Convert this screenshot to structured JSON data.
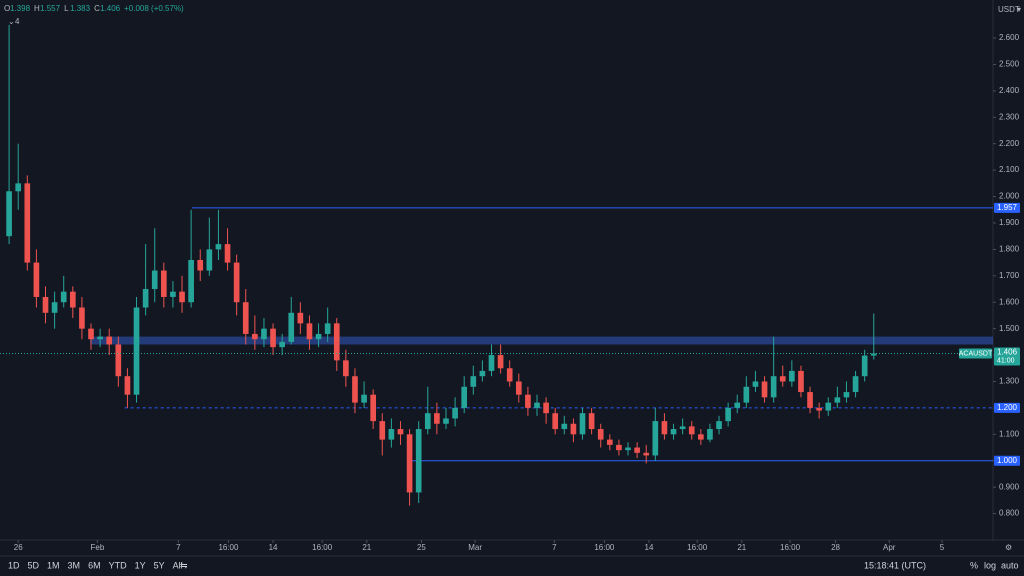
{
  "chart_data": {
    "type": "candlestick",
    "symbol": "ACAUSDT",
    "currency": "USDT",
    "up_color": "#26a69a",
    "down_color": "#ef5350",
    "log_scale": false,
    "grid": false,
    "open": [
      1.85,
      2.02,
      2.05,
      1.75,
      1.62,
      1.56,
      1.6,
      1.64,
      1.58,
      1.5,
      1.46,
      1.47,
      1.44,
      1.32,
      1.25,
      1.58,
      1.65,
      1.72,
      1.62,
      1.64,
      1.6,
      1.76,
      1.72,
      1.8,
      1.82,
      1.75,
      1.6,
      1.48,
      1.46,
      1.5,
      1.43,
      1.45,
      1.56,
      1.52,
      1.46,
      1.48,
      1.52,
      1.38,
      1.32,
      1.22,
      1.25,
      1.15,
      1.08,
      1.12,
      1.1,
      0.88,
      1.12,
      1.18,
      1.14,
      1.16,
      1.2,
      1.28,
      1.32,
      1.34,
      1.4,
      1.35,
      1.3,
      1.25,
      1.2,
      1.22,
      1.18,
      1.12,
      1.14,
      1.1,
      1.18,
      1.12,
      1.08,
      1.06,
      1.04,
      1.05,
      1.03,
      1.02,
      1.15,
      1.1,
      1.12,
      1.13,
      1.1,
      1.08,
      1.12,
      1.15,
      1.2,
      1.22,
      1.28,
      1.3,
      1.24,
      1.32,
      1.3,
      1.34,
      1.26,
      1.2,
      1.19,
      1.22,
      1.24,
      1.26,
      1.32,
      1.398
    ],
    "high": [
      2.65,
      2.2,
      2.08,
      1.8,
      1.66,
      1.64,
      1.7,
      1.66,
      1.62,
      1.52,
      1.5,
      1.5,
      1.47,
      1.35,
      1.62,
      1.82,
      1.88,
      1.75,
      1.68,
      1.7,
      1.95,
      1.8,
      1.92,
      1.95,
      1.88,
      1.78,
      1.65,
      1.55,
      1.54,
      1.52,
      1.48,
      1.62,
      1.6,
      1.55,
      1.52,
      1.58,
      1.54,
      1.42,
      1.35,
      1.3,
      1.27,
      1.18,
      1.16,
      1.15,
      1.12,
      1.15,
      1.28,
      1.22,
      1.2,
      1.24,
      1.32,
      1.36,
      1.38,
      1.44,
      1.44,
      1.38,
      1.33,
      1.28,
      1.25,
      1.24,
      1.2,
      1.17,
      1.16,
      1.2,
      1.2,
      1.14,
      1.1,
      1.08,
      1.07,
      1.07,
      1.06,
      1.2,
      1.18,
      1.14,
      1.16,
      1.15,
      1.12,
      1.14,
      1.17,
      1.22,
      1.25,
      1.32,
      1.34,
      1.32,
      1.47,
      1.36,
      1.38,
      1.36,
      1.28,
      1.22,
      1.24,
      1.28,
      1.3,
      1.34,
      1.42,
      1.557
    ],
    "low": [
      1.82,
      1.95,
      1.72,
      1.58,
      1.52,
      1.5,
      1.58,
      1.54,
      1.46,
      1.42,
      1.43,
      1.4,
      1.28,
      1.2,
      1.22,
      1.55,
      1.6,
      1.58,
      1.58,
      1.56,
      1.58,
      1.68,
      1.7,
      1.76,
      1.72,
      1.55,
      1.44,
      1.42,
      1.43,
      1.4,
      1.4,
      1.44,
      1.48,
      1.42,
      1.43,
      1.45,
      1.34,
      1.28,
      1.18,
      1.2,
      1.12,
      1.02,
      1.05,
      1.06,
      0.83,
      0.84,
      1.1,
      1.1,
      1.12,
      1.13,
      1.18,
      1.25,
      1.3,
      1.32,
      1.33,
      1.28,
      1.22,
      1.17,
      1.17,
      1.14,
      1.1,
      1.1,
      1.07,
      1.08,
      1.1,
      1.05,
      1.04,
      1.02,
      1.02,
      1.01,
      0.99,
      1.0,
      1.08,
      1.08,
      1.1,
      1.08,
      1.06,
      1.07,
      1.1,
      1.13,
      1.18,
      1.2,
      1.26,
      1.22,
      1.22,
      1.28,
      1.28,
      1.24,
      1.18,
      1.16,
      1.17,
      1.2,
      1.22,
      1.24,
      1.3,
      1.383
    ],
    "close": [
      2.02,
      2.05,
      1.75,
      1.62,
      1.56,
      1.6,
      1.64,
      1.58,
      1.5,
      1.46,
      1.47,
      1.44,
      1.32,
      1.25,
      1.58,
      1.65,
      1.72,
      1.62,
      1.64,
      1.6,
      1.76,
      1.72,
      1.8,
      1.82,
      1.75,
      1.6,
      1.48,
      1.46,
      1.5,
      1.43,
      1.45,
      1.56,
      1.52,
      1.46,
      1.48,
      1.52,
      1.38,
      1.32,
      1.22,
      1.25,
      1.15,
      1.08,
      1.12,
      1.1,
      0.88,
      1.12,
      1.18,
      1.14,
      1.16,
      1.2,
      1.28,
      1.32,
      1.34,
      1.4,
      1.35,
      1.3,
      1.25,
      1.2,
      1.22,
      1.18,
      1.12,
      1.14,
      1.1,
      1.18,
      1.12,
      1.08,
      1.06,
      1.04,
      1.05,
      1.03,
      1.02,
      1.15,
      1.1,
      1.12,
      1.13,
      1.1,
      1.08,
      1.12,
      1.15,
      1.2,
      1.22,
      1.28,
      1.3,
      1.24,
      1.32,
      1.3,
      1.34,
      1.26,
      1.2,
      1.19,
      1.22,
      1.24,
      1.26,
      1.32,
      1.398,
      1.406
    ],
    "xlim": [
      -1,
      108.1
    ],
    "xticks": [
      {
        "value": 1.0,
        "label": "26"
      },
      {
        "value": 9.7,
        "label": "Feb"
      },
      {
        "value": 18.6,
        "label": "7"
      },
      {
        "value": 24.1,
        "label": "16:00"
      },
      {
        "value": 29.0,
        "label": "14"
      },
      {
        "value": 34.4,
        "label": "16:00"
      },
      {
        "value": 39.3,
        "label": "21"
      },
      {
        "value": 45.3,
        "label": "25"
      },
      {
        "value": 51.2,
        "label": "Mar"
      },
      {
        "value": 59.9,
        "label": "7"
      },
      {
        "value": 65.4,
        "label": "16:00"
      },
      {
        "value": 70.3,
        "label": "14"
      },
      {
        "value": 75.6,
        "label": "16:00"
      },
      {
        "value": 80.5,
        "label": "21"
      },
      {
        "value": 85.8,
        "label": "16:00"
      },
      {
        "value": 90.8,
        "label": "28"
      },
      {
        "value": 96.7,
        "label": "Apr"
      },
      {
        "value": 102.5,
        "label": "5"
      }
    ],
    "ylim": [
      0.7,
      2.744
    ],
    "yticks": [
      {
        "value": 0.8,
        "label": "0.800"
      },
      {
        "value": 0.9,
        "label": "0.900"
      },
      {
        "value": 1.0,
        "label": "1.000"
      },
      {
        "value": 1.1,
        "label": "1.100"
      },
      {
        "value": 1.2,
        "label": "1.200"
      },
      {
        "value": 1.3,
        "label": "1.300"
      },
      {
        "value": 1.4,
        "label": "1.400"
      },
      {
        "value": 1.5,
        "label": "1.500"
      },
      {
        "value": 1.6,
        "label": "1.600"
      },
      {
        "value": 1.7,
        "label": "1.700"
      },
      {
        "value": 1.8,
        "label": "1.800"
      },
      {
        "value": 1.9,
        "label": "1.900"
      },
      {
        "value": 2.0,
        "label": "2.000"
      },
      {
        "value": 2.1,
        "label": "2.100"
      },
      {
        "value": 2.2,
        "label": "2.200"
      },
      {
        "value": 2.3,
        "label": "2.300"
      },
      {
        "value": 2.4,
        "label": "2.400"
      },
      {
        "value": 2.5,
        "label": "2.500"
      },
      {
        "value": 2.6,
        "label": "2.600"
      }
    ],
    "price_lines": [
      {
        "value": 1.957,
        "label": "1.957",
        "start": 20.1,
        "style": "solid"
      },
      {
        "value": 1.2,
        "label": "1.200",
        "start": 12.7,
        "style": "dashed"
      },
      {
        "value": 1.0,
        "label": "1.000",
        "start": 44.1,
        "style": "solid"
      }
    ],
    "zone": {
      "low": 1.44,
      "high": 1.47,
      "start": 8.9
    },
    "countdown": "41:00",
    "change": "+0.008 (+0.57%)",
    "ohlc_letters": [
      "O",
      "H",
      "L",
      "C"
    ],
    "indicator_count": "4"
  },
  "toolbar": {
    "ranges": [
      "1D",
      "5D",
      "1M",
      "3M",
      "6M",
      "YTD",
      "1Y",
      "5Y",
      "All"
    ],
    "clock": "15:18:41 (UTC)",
    "percent": "%",
    "log": "log",
    "auto": "auto"
  }
}
